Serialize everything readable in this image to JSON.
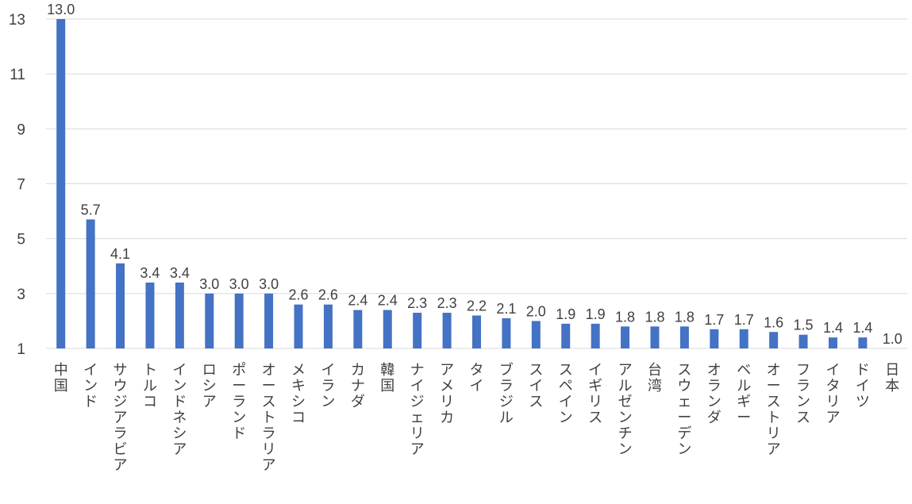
{
  "chart_data": {
    "type": "bar",
    "title": "",
    "xlabel": "",
    "ylabel": "",
    "ylim": [
      1,
      13
    ],
    "yticks": [
      1,
      3,
      5,
      7,
      9,
      11,
      13
    ],
    "grid": true,
    "bar_color": "#4472c4",
    "categories": [
      "中国",
      "インド",
      "サウジアラビア",
      "トルコ",
      "インドネシア",
      "ロシア",
      "ポーランド",
      "オーストラリア",
      "メキシコ",
      "イラン",
      "カナダ",
      "韓国",
      "ナイジェリア",
      "アメリカ",
      "タイ",
      "ブラジル",
      "スイス",
      "スペイン",
      "イギリス",
      "アルゼンチン",
      "台湾",
      "スウェーデン",
      "オランダ",
      "ベルギー",
      "オーストリア",
      "フランス",
      "イタリア",
      "ドイツ",
      "日本"
    ],
    "values": [
      13.0,
      5.7,
      4.1,
      3.4,
      3.4,
      3.0,
      3.0,
      3.0,
      2.6,
      2.6,
      2.4,
      2.4,
      2.3,
      2.3,
      2.2,
      2.1,
      2.0,
      1.9,
      1.9,
      1.8,
      1.8,
      1.8,
      1.7,
      1.7,
      1.6,
      1.5,
      1.4,
      1.4,
      1.0
    ],
    "data_labels": [
      "13.0",
      "5.7",
      "4.1",
      "3.4",
      "3.4",
      "3.0",
      "3.0",
      "3.0",
      "2.6",
      "2.6",
      "2.4",
      "2.4",
      "2.3",
      "2.3",
      "2.2",
      "2.1",
      "2.0",
      "1.9",
      "1.9",
      "1.8",
      "1.8",
      "1.8",
      "1.7",
      "1.7",
      "1.6",
      "1.5",
      "1.4",
      "1.4",
      "1.0"
    ]
  }
}
